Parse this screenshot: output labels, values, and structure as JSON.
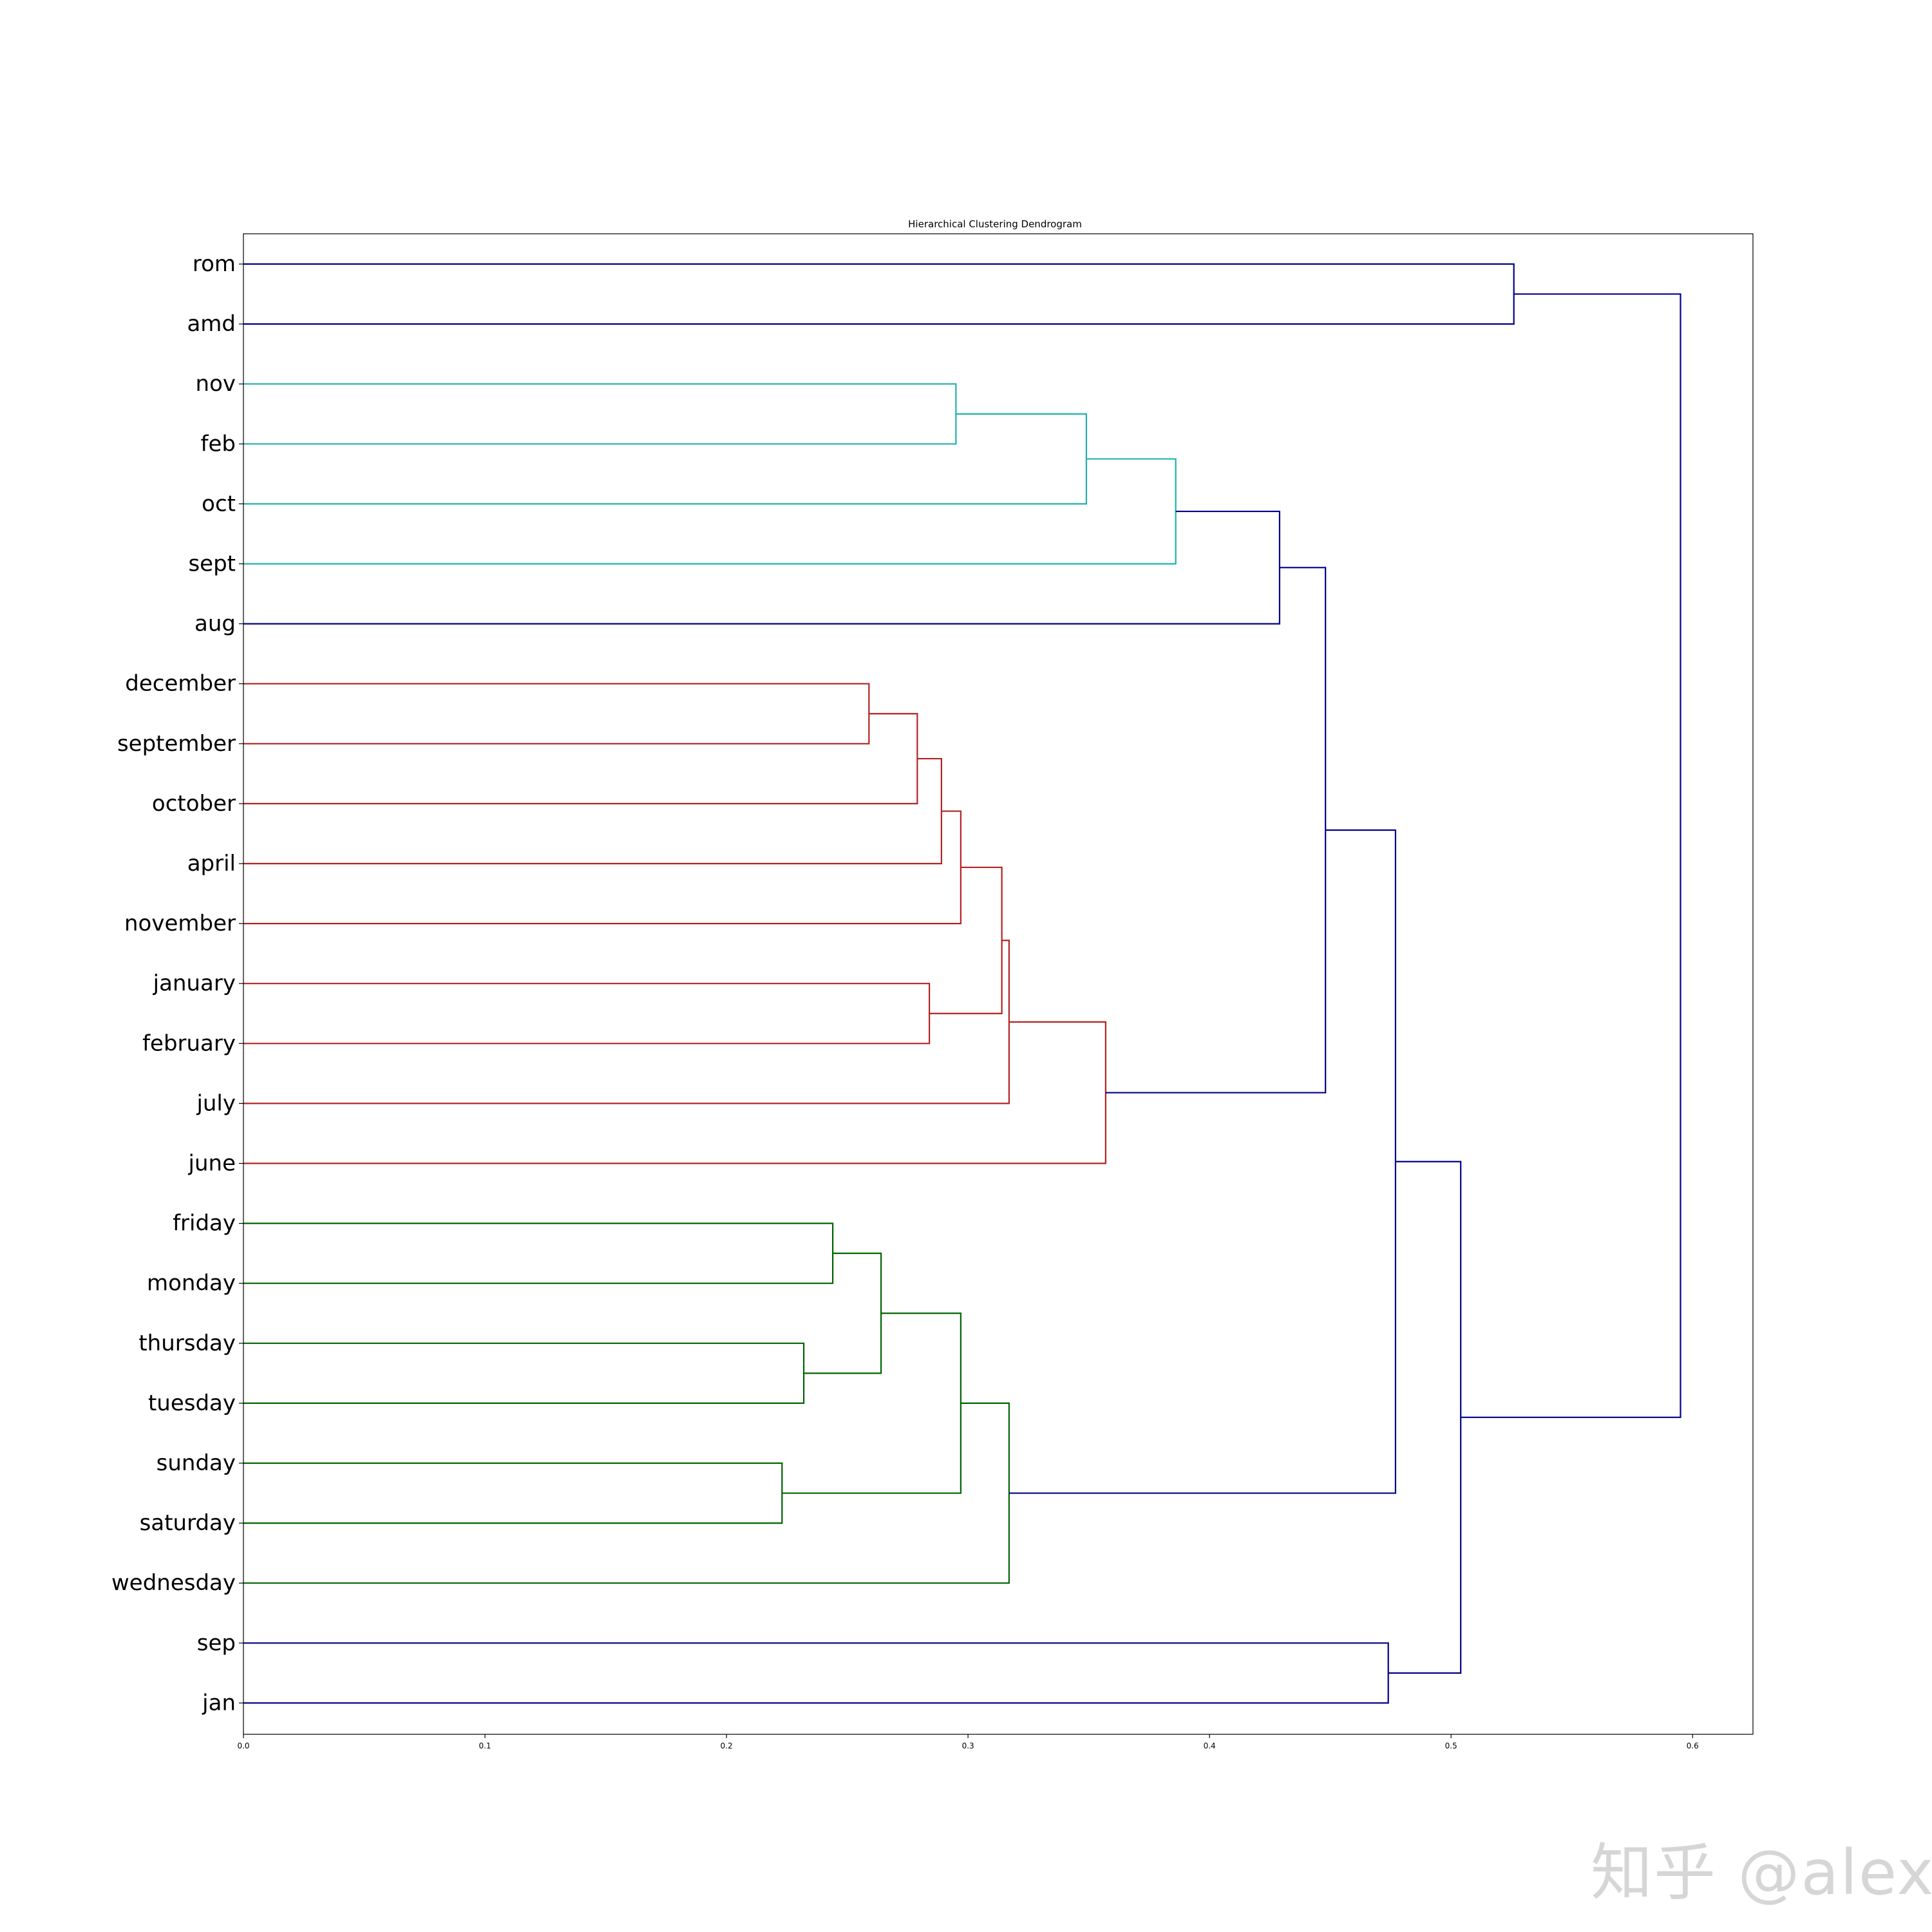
{
  "chart_data": {
    "type": "dendrogram",
    "title": "Hierarchical Clustering Dendrogram",
    "orientation": "horizontal",
    "xlim": [
      0,
      0.625
    ],
    "xticks": [
      0.0,
      0.1,
      0.2,
      0.3,
      0.4,
      0.5,
      0.6
    ],
    "xtick_labels": [
      "0.0",
      "0.1",
      "0.2",
      "0.3",
      "0.4",
      "0.5",
      "0.6"
    ],
    "leaves": [
      "rom",
      "amd",
      "nov",
      "feb",
      "oct",
      "sept",
      "aug",
      "december",
      "september",
      "october",
      "april",
      "november",
      "january",
      "february",
      "july",
      "june",
      "friday",
      "monday",
      "thursday",
      "tuesday",
      "sunday",
      "saturday",
      "wednesday",
      "sep",
      "jan"
    ],
    "colors": {
      "above_threshold": "#00008b",
      "cluster_cyan": "#20b2aa",
      "cluster_red": "#b22222",
      "cluster_green": "#006400"
    },
    "merges": [
      {
        "id": "n1",
        "children": [
          "rom",
          "amd"
        ],
        "distance": 0.526,
        "color": "above_threshold"
      },
      {
        "id": "n2",
        "children": [
          "nov",
          "feb"
        ],
        "distance": 0.295,
        "color": "cluster_cyan"
      },
      {
        "id": "n3",
        "children": [
          "n2",
          "oct"
        ],
        "distance": 0.349,
        "color": "cluster_cyan"
      },
      {
        "id": "n4",
        "children": [
          "n3",
          "sept"
        ],
        "distance": 0.386,
        "color": "cluster_cyan"
      },
      {
        "id": "n5",
        "children": [
          "n4",
          "aug"
        ],
        "distance": 0.429,
        "color": "above_threshold"
      },
      {
        "id": "n6",
        "children": [
          "december",
          "september"
        ],
        "distance": 0.259,
        "color": "cluster_red"
      },
      {
        "id": "n7",
        "children": [
          "n6",
          "october"
        ],
        "distance": 0.279,
        "color": "cluster_red"
      },
      {
        "id": "n8",
        "children": [
          "n7",
          "april"
        ],
        "distance": 0.289,
        "color": "cluster_red"
      },
      {
        "id": "n9",
        "children": [
          "n8",
          "november"
        ],
        "distance": 0.297,
        "color": "cluster_red"
      },
      {
        "id": "n10",
        "children": [
          "january",
          "february"
        ],
        "distance": 0.284,
        "color": "cluster_red"
      },
      {
        "id": "n11",
        "children": [
          "n9",
          "n10"
        ],
        "distance": 0.314,
        "color": "cluster_red"
      },
      {
        "id": "n12",
        "children": [
          "n11",
          "july"
        ],
        "distance": 0.317,
        "color": "cluster_red"
      },
      {
        "id": "n13",
        "children": [
          "n12",
          "june"
        ],
        "distance": 0.357,
        "color": "cluster_red"
      },
      {
        "id": "n14",
        "children": [
          "n5",
          "n13"
        ],
        "distance": 0.448,
        "color": "above_threshold"
      },
      {
        "id": "n15",
        "children": [
          "friday",
          "monday"
        ],
        "distance": 0.244,
        "color": "cluster_green"
      },
      {
        "id": "n16",
        "children": [
          "thursday",
          "tuesday"
        ],
        "distance": 0.232,
        "color": "cluster_green"
      },
      {
        "id": "n17",
        "children": [
          "n15",
          "n16"
        ],
        "distance": 0.264,
        "color": "cluster_green"
      },
      {
        "id": "n18",
        "children": [
          "sunday",
          "saturday"
        ],
        "distance": 0.223,
        "color": "cluster_green"
      },
      {
        "id": "n19",
        "children": [
          "n17",
          "n18"
        ],
        "distance": 0.297,
        "color": "cluster_green"
      },
      {
        "id": "n20",
        "children": [
          "n19",
          "wednesday"
        ],
        "distance": 0.317,
        "color": "cluster_green"
      },
      {
        "id": "n21",
        "children": [
          "n14",
          "n20"
        ],
        "distance": 0.477,
        "color": "above_threshold"
      },
      {
        "id": "n22",
        "children": [
          "sep",
          "jan"
        ],
        "distance": 0.474,
        "color": "above_threshold"
      },
      {
        "id": "n23",
        "children": [
          "n21",
          "n22"
        ],
        "distance": 0.504,
        "color": "above_threshold"
      },
      {
        "id": "n24",
        "children": [
          "n1",
          "n23"
        ],
        "distance": 0.595,
        "color": "above_threshold"
      }
    ]
  },
  "watermark": "知乎 @alex"
}
